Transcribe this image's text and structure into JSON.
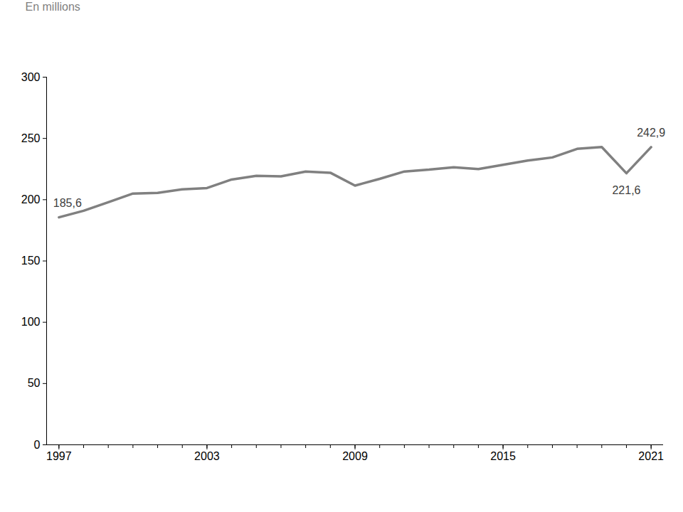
{
  "chart_data": {
    "type": "line",
    "y_label": "En millions",
    "x": [
      1997,
      1998,
      1999,
      2000,
      2001,
      2002,
      2003,
      2004,
      2005,
      2006,
      2007,
      2008,
      2009,
      2010,
      2011,
      2012,
      2013,
      2014,
      2015,
      2016,
      2017,
      2018,
      2019,
      2020,
      2021
    ],
    "values": [
      185.6,
      191,
      198,
      205,
      205.5,
      208.5,
      209.5,
      216.5,
      219.5,
      219,
      223,
      222,
      211.5,
      217,
      223,
      224.5,
      226.5,
      225,
      228.5,
      232,
      234.5,
      241.5,
      243,
      221.6,
      242.9
    ],
    "value_labels": [
      "185,6",
      null,
      null,
      null,
      null,
      null,
      null,
      null,
      null,
      null,
      null,
      null,
      null,
      null,
      null,
      null,
      null,
      null,
      null,
      null,
      null,
      null,
      null,
      "221,6",
      "242,9"
    ],
    "color": "#808080",
    "xlim": [
      1996.5,
      2021.5
    ],
    "xticks": [
      1997,
      2003,
      2009,
      2015,
      2021
    ],
    "ylim": [
      0,
      300
    ],
    "yticks": [
      0,
      50,
      100,
      150,
      200,
      250,
      300
    ],
    "grid": false
  }
}
